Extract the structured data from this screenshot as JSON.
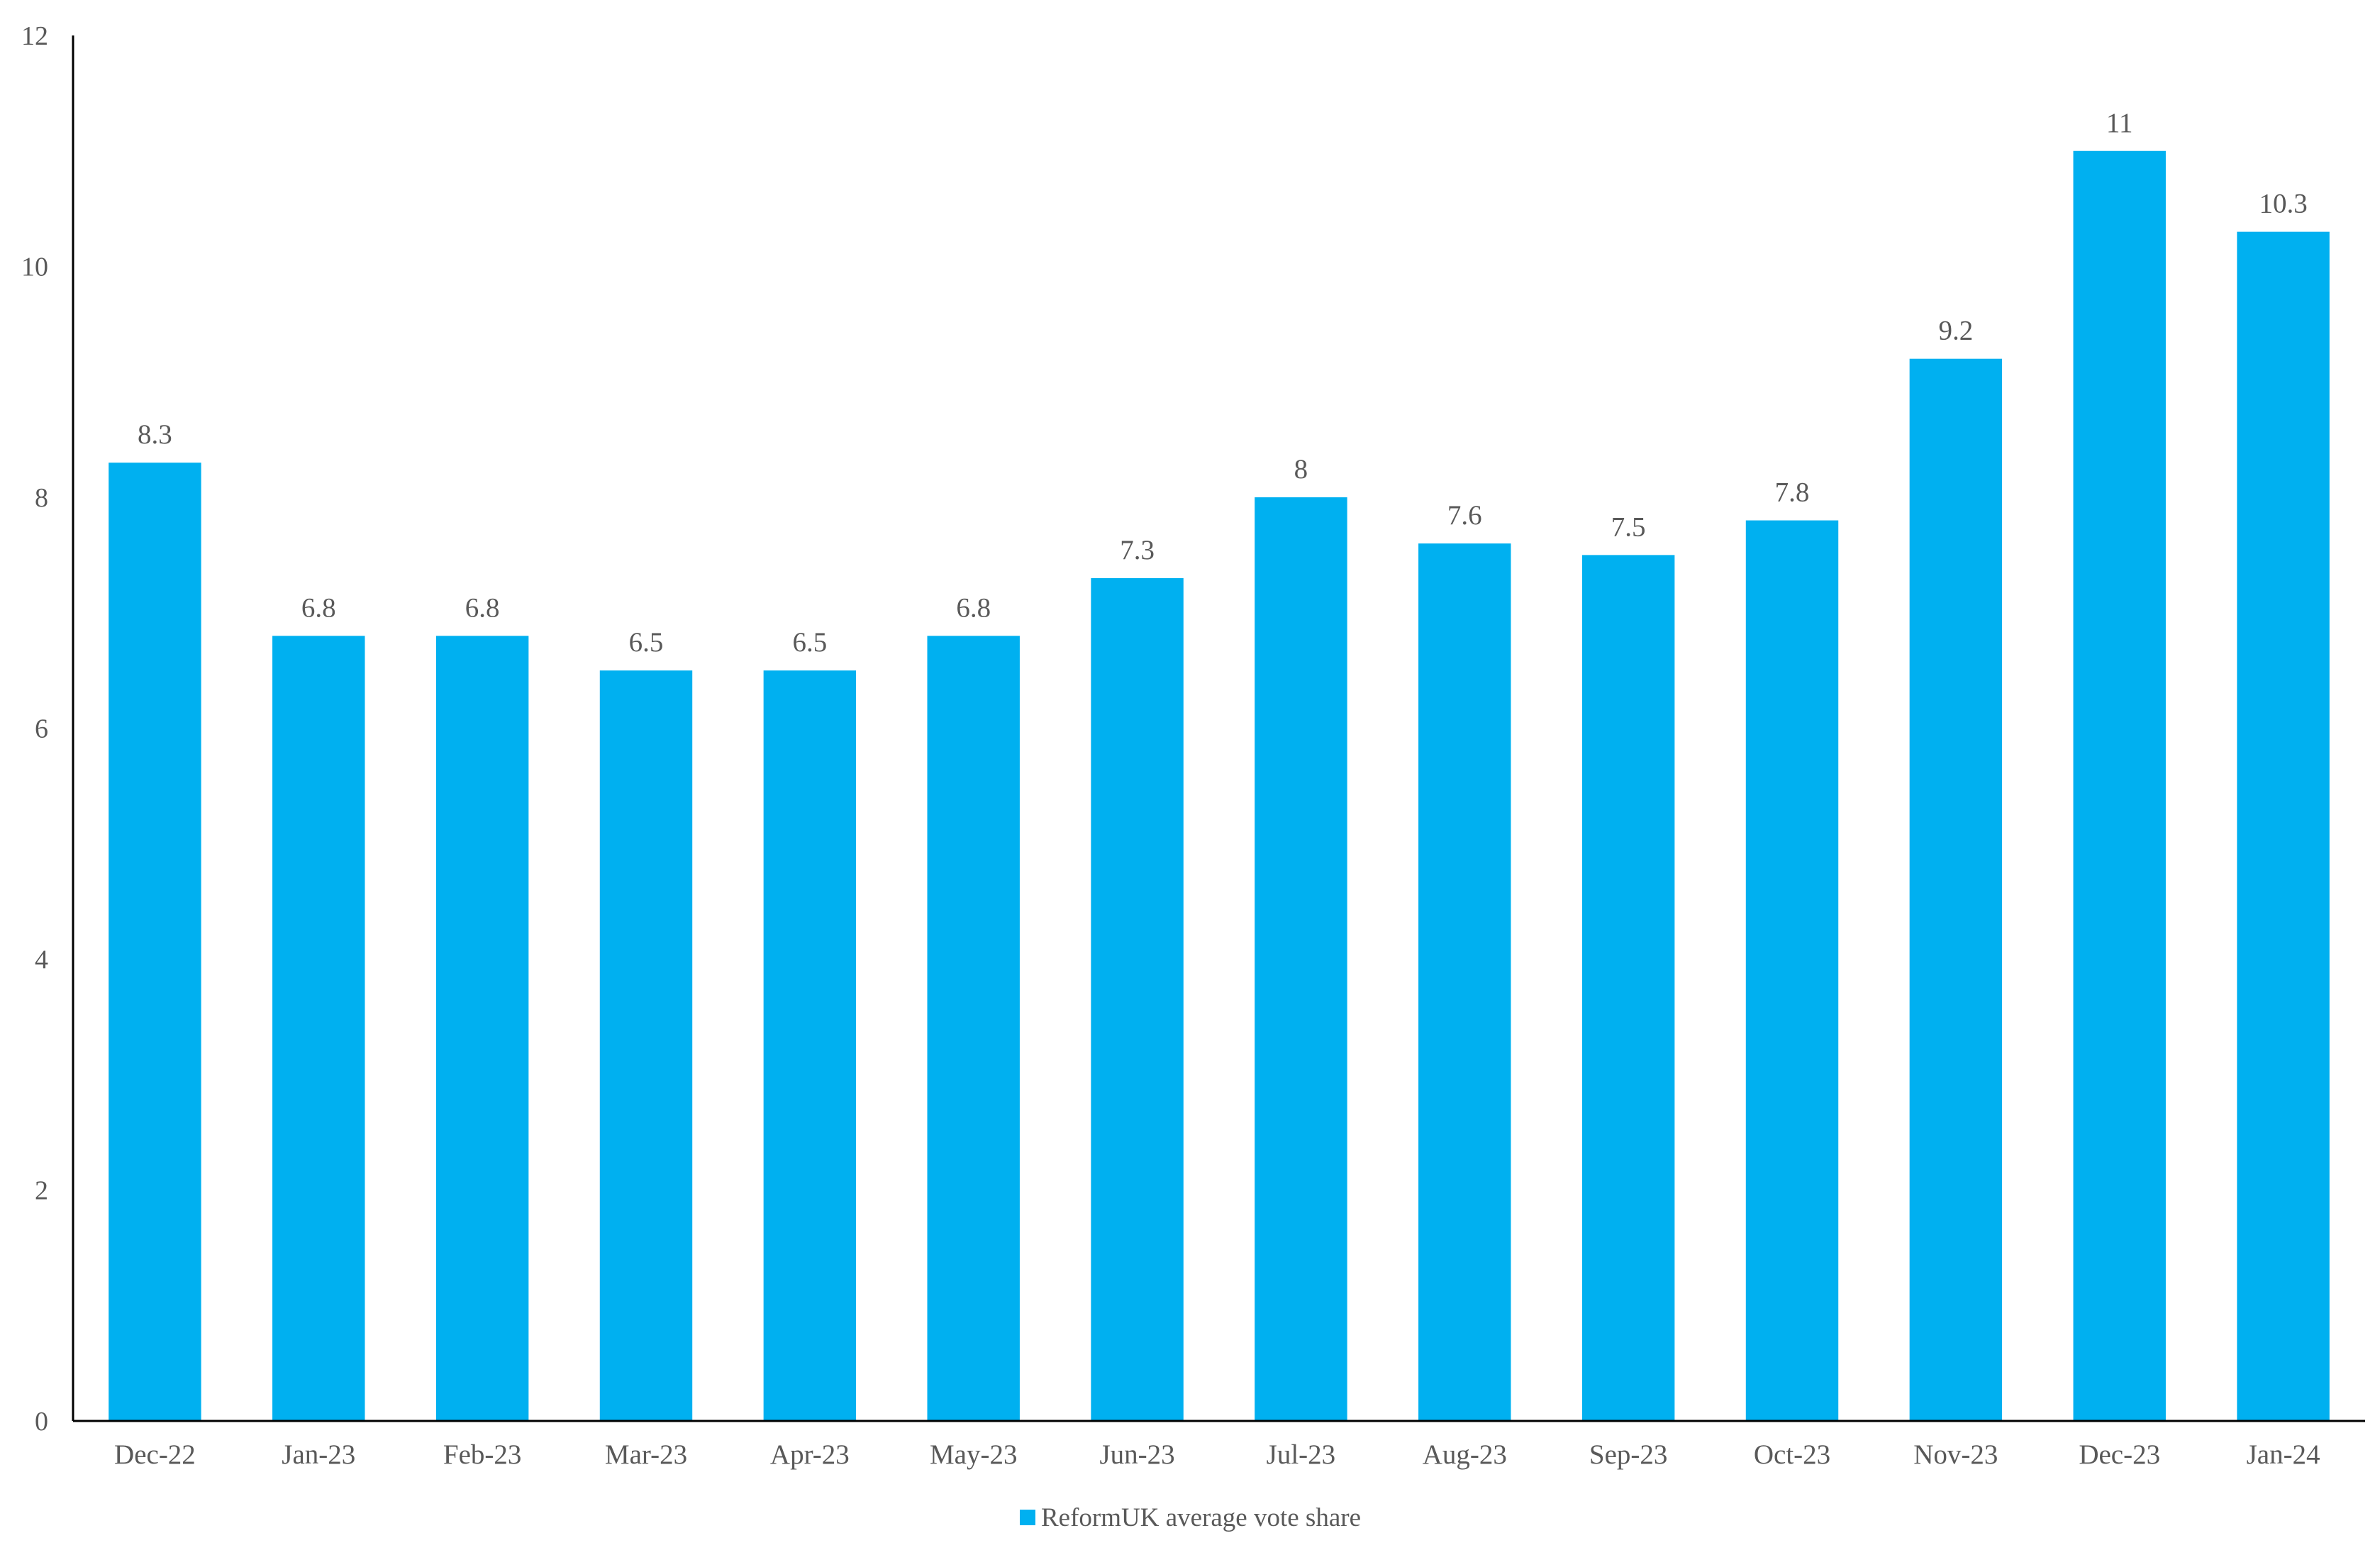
{
  "chart_data": {
    "type": "bar",
    "title": "",
    "xlabel": "",
    "ylabel": "",
    "categories": [
      "Dec-22",
      "Jan-23",
      "Feb-23",
      "Mar-23",
      "Apr-23",
      "May-23",
      "Jun-23",
      "Jul-23",
      "Aug-23",
      "Sep-23",
      "Oct-23",
      "Nov-23",
      "Dec-23",
      "Jan-24"
    ],
    "series": [
      {
        "name": "ReformUK average vote share",
        "values": [
          8.3,
          6.8,
          6.8,
          6.5,
          6.5,
          6.8,
          7.3,
          8,
          7.6,
          7.5,
          7.8,
          9.2,
          11,
          10.3
        ],
        "value_labels": [
          "8.3",
          "6.8",
          "6.8",
          "6.5",
          "6.5",
          "6.8",
          "7.3",
          "8",
          "7.6",
          "7.5",
          "7.8",
          "9.2",
          "11",
          "10.3"
        ],
        "color": "#00B0F0"
      }
    ],
    "ylim": [
      0,
      12
    ],
    "yticks": [
      "0",
      "2",
      "4",
      "6",
      "8",
      "10",
      "12"
    ],
    "grid": false,
    "legend_position": "bottom",
    "axis_color": "#000000",
    "text_color": "#595959"
  }
}
